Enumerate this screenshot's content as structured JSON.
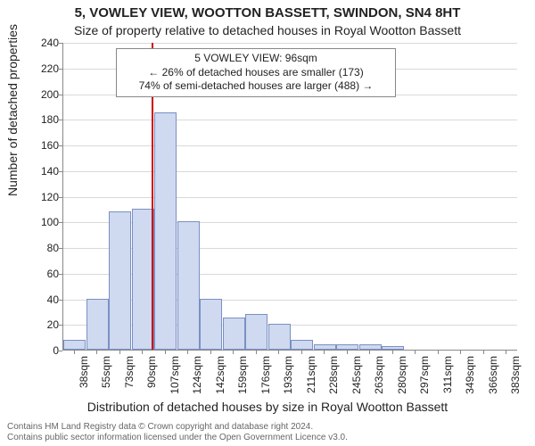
{
  "title": "5, VOWLEY VIEW, WOOTTON BASSETT, SWINDON, SN4 8HT",
  "subtitle": "Size of property relative to detached houses in Royal Wootton Bassett",
  "y_axis_label": "Number of detached properties",
  "x_axis_label": "Distribution of detached houses by size in Royal Wootton Bassett",
  "chart": {
    "type": "histogram",
    "background_color": "#ffffff",
    "grid_color": "#d9d9d9",
    "axis_color": "#888888",
    "bar_fill": "#cfd9ef",
    "bar_border": "#7a90c4",
    "marker_color": "#cc0000",
    "ylim": [
      0,
      240
    ],
    "ytick_step": 20,
    "x_categories": [
      "38sqm",
      "55sqm",
      "73sqm",
      "90sqm",
      "107sqm",
      "124sqm",
      "142sqm",
      "159sqm",
      "176sqm",
      "193sqm",
      "211sqm",
      "228sqm",
      "245sqm",
      "263sqm",
      "280sqm",
      "297sqm",
      "311sqm",
      "349sqm",
      "366sqm",
      "383sqm"
    ],
    "values": [
      8,
      40,
      108,
      110,
      185,
      100,
      40,
      25,
      28,
      20,
      8,
      4,
      4,
      4,
      3,
      0,
      0,
      0,
      0,
      0
    ],
    "marker_index": 3.4,
    "label_fontsize": 14,
    "tick_fontsize": 12,
    "title_fontsize": 15
  },
  "annotation": {
    "line1": "5 VOWLEY VIEW: 96sqm",
    "line2": "← 26% of detached houses are smaller (173)",
    "line3": "74% of semi-detached houses are larger (488) →",
    "border_color": "#888888"
  },
  "footer": {
    "line1": "Contains HM Land Registry data © Crown copyright and database right 2024.",
    "line2": "Contains public sector information licensed under the Open Government Licence v3.0."
  }
}
